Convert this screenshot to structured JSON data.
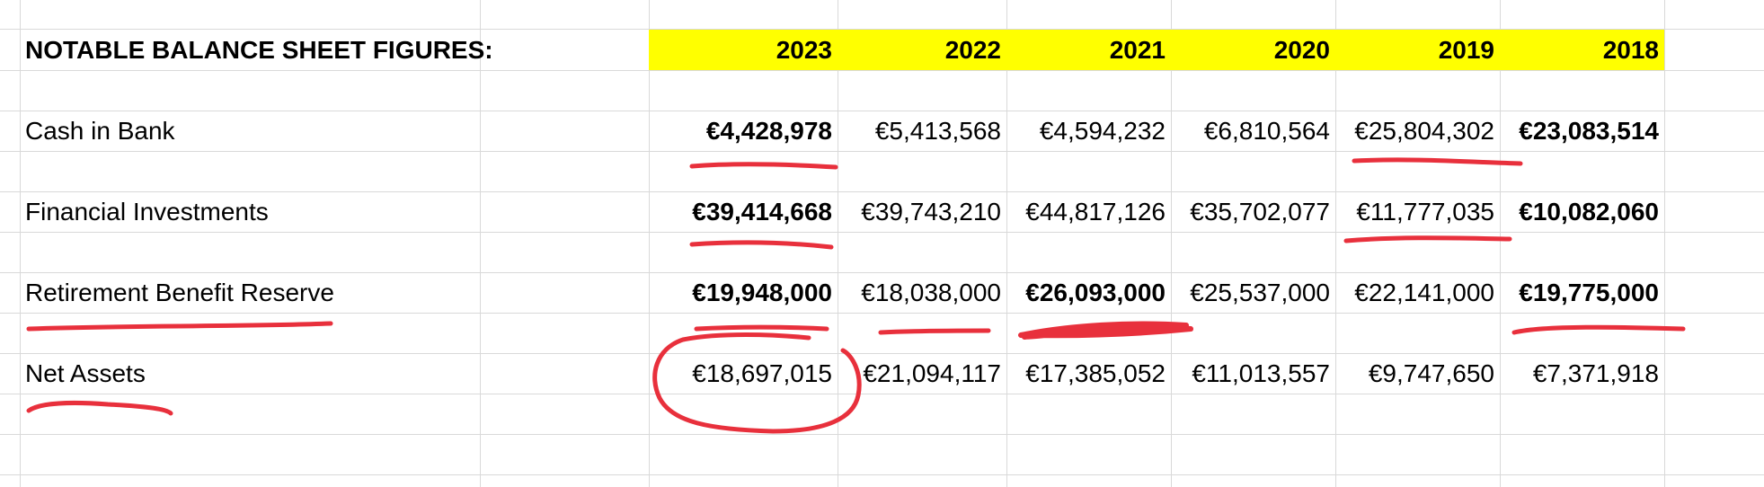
{
  "sheet": {
    "title": "NOTABLE BALANCE SHEET FIGURES:",
    "years": [
      "2023",
      "2022",
      "2021",
      "2020",
      "2019",
      "2018"
    ],
    "rows": [
      {
        "label": "Cash in Bank",
        "values": [
          "€4,428,978",
          "€5,413,568",
          "€4,594,232",
          "€6,810,564",
          "€25,804,302",
          "€23,083,514"
        ],
        "bold": [
          true,
          false,
          false,
          false,
          false,
          true
        ]
      },
      {
        "label": "Financial Investments",
        "values": [
          "€39,414,668",
          "€39,743,210",
          "€44,817,126",
          "€35,702,077",
          "€11,777,035",
          "€10,082,060"
        ],
        "bold": [
          true,
          false,
          false,
          false,
          false,
          true
        ]
      },
      {
        "label": "Retirement Benefit Reserve",
        "values": [
          "€19,948,000",
          "€18,038,000",
          "€26,093,000",
          "€25,537,000",
          "€22,141,000",
          "€19,775,000"
        ],
        "bold": [
          true,
          false,
          true,
          false,
          false,
          true
        ]
      },
      {
        "label": "Net Assets",
        "values": [
          "€18,697,015",
          "€21,094,117",
          "€17,385,052",
          "€11,013,557",
          "€9,747,650",
          "€7,371,918"
        ],
        "bold": [
          false,
          false,
          false,
          false,
          false,
          false
        ]
      }
    ]
  },
  "colors": {
    "header_highlight": "#ffff00",
    "gridline": "#d9d9d9",
    "annotation_ink": "#e8303c"
  }
}
